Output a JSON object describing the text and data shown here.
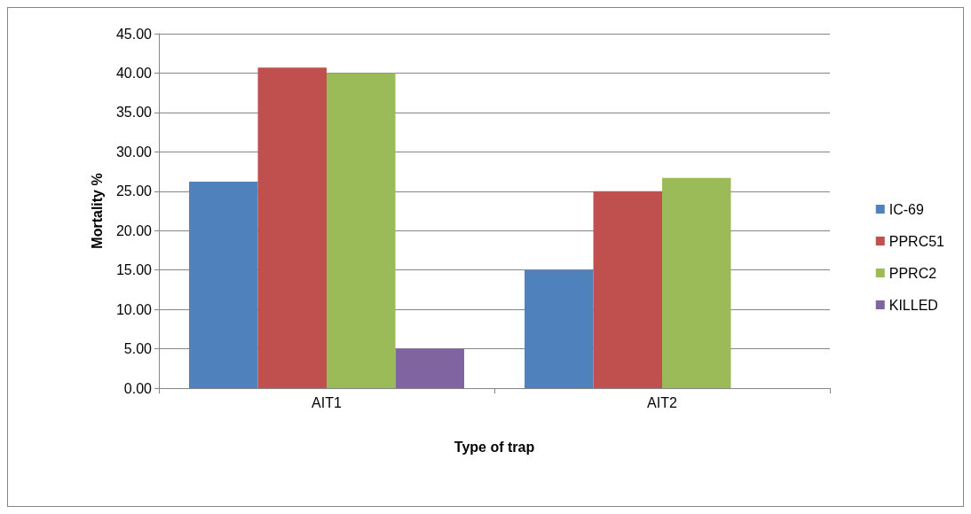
{
  "chart_data": {
    "type": "bar",
    "xlabel": "Type of trap",
    "ylabel": "Mortality %",
    "categories": [
      "AIT1",
      "AIT2"
    ],
    "series": [
      {
        "name": "IC-69",
        "color": "#4f81bd",
        "values": [
          26.2,
          15.0
        ]
      },
      {
        "name": "PPRC51",
        "color": "#c0504d",
        "values": [
          40.7,
          25.0
        ]
      },
      {
        "name": "PPRC2",
        "color": "#9bbb59",
        "values": [
          40.0,
          26.7
        ]
      },
      {
        "name": "KILLED",
        "color": "#8064a2",
        "values": [
          5.0,
          0
        ]
      }
    ],
    "ylim": [
      0,
      45
    ],
    "yticks": [
      {
        "value": 0,
        "label": "0.00"
      },
      {
        "value": 5,
        "label": "5.00"
      },
      {
        "value": 10,
        "label": "10.00"
      },
      {
        "value": 15,
        "label": "15.00"
      },
      {
        "value": 20,
        "label": "20.00"
      },
      {
        "value": 25,
        "label": "25.00"
      },
      {
        "value": 30,
        "label": "30.00"
      },
      {
        "value": 35,
        "label": "35.00"
      },
      {
        "value": 40,
        "label": "40.00"
      },
      {
        "value": 45,
        "label": "45.00"
      }
    ],
    "grid": "y",
    "legend": "right"
  }
}
